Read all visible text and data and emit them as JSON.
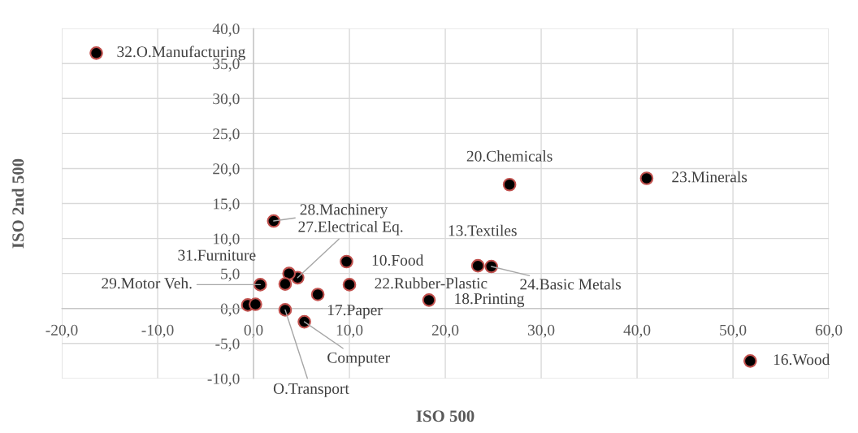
{
  "chart_data": {
    "type": "scatter",
    "xlabel": "ISO 500",
    "ylabel": "ISO 2nd 500",
    "series": [
      {
        "color": "#000000",
        "x": [
          -16.4,
          26.7,
          41.0,
          23.4,
          24.8,
          18.3,
          51.8,
          2.1,
          4.6,
          9.7,
          3.7,
          0.7,
          10.0,
          6.7,
          3.3,
          5.3,
          3.3,
          -0.6,
          0.2
        ],
        "values": [
          36.5,
          17.7,
          18.6,
          6.1,
          6.0,
          1.2,
          -7.5,
          12.5,
          4.4,
          6.7,
          5.0,
          3.4,
          3.4,
          2.0,
          -0.2,
          -1.9,
          3.5,
          0.5,
          0.6
        ]
      }
    ],
    "annotations": [
      {
        "text": "32.O.Manufacturing",
        "x": -16.4,
        "y": 36.5
      },
      {
        "text": "20.Chemicals",
        "x": 26.7,
        "y": 17.7
      },
      {
        "text": "23.Minerals",
        "x": 41.0,
        "y": 18.6
      },
      {
        "text": "13.Textiles",
        "x": 23.4,
        "y": 6.1
      },
      {
        "text": "24.Basic Metals",
        "x": 24.8,
        "y": 6.0
      },
      {
        "text": "18.Printing",
        "x": 18.3,
        "y": 1.2
      },
      {
        "text": "16.Wood",
        "x": 51.8,
        "y": -7.5
      },
      {
        "text": "28.Machinery",
        "x": 2.1,
        "y": 12.5
      },
      {
        "text": "27.Electrical Eq.",
        "x": 4.6,
        "y": 4.4
      },
      {
        "text": "10.Food",
        "x": 9.7,
        "y": 6.7
      },
      {
        "text": "31.Furniture",
        "x": 3.7,
        "y": 5.0
      },
      {
        "text": "29.Motor Veh.",
        "x": 0.7,
        "y": 3.4
      },
      {
        "text": "22.Rubber-Plastic",
        "x": 10.0,
        "y": 3.4
      },
      {
        "text": "17.Paper",
        "x": 6.7,
        "y": 2.0
      },
      {
        "text": "O.Transport",
        "x": 3.3,
        "y": -0.2
      },
      {
        "text": "Computer",
        "x": 5.3,
        "y": -1.9
      }
    ],
    "xlim": [
      -20,
      60
    ],
    "ylim": [
      -10,
      40
    ],
    "xticks": [
      {
        "value": -20,
        "label": "-20,0"
      },
      {
        "value": -10,
        "label": "-10,0"
      },
      {
        "value": 0,
        "label": "0,0"
      },
      {
        "value": 10,
        "label": "10,0"
      },
      {
        "value": 20,
        "label": "20,0"
      },
      {
        "value": 30,
        "label": "30,0"
      },
      {
        "value": 40,
        "label": "40,0"
      },
      {
        "value": 50,
        "label": "50,0"
      },
      {
        "value": 60,
        "label": "60,0"
      }
    ],
    "yticks": [
      {
        "value": -10,
        "label": "-10,0"
      },
      {
        "value": -5,
        "label": "-5,0"
      },
      {
        "value": 0,
        "label": "0,0"
      },
      {
        "value": 5,
        "label": "5,0"
      },
      {
        "value": 10,
        "label": "10,0"
      },
      {
        "value": 15,
        "label": "15,0"
      },
      {
        "value": 20,
        "label": "20,0"
      },
      {
        "value": 25,
        "label": "25,0"
      },
      {
        "value": 30,
        "label": "30,0"
      },
      {
        "value": 35,
        "label": "35,0"
      },
      {
        "value": 40,
        "label": "40,0"
      }
    ],
    "grid": true,
    "marker": "circle"
  }
}
